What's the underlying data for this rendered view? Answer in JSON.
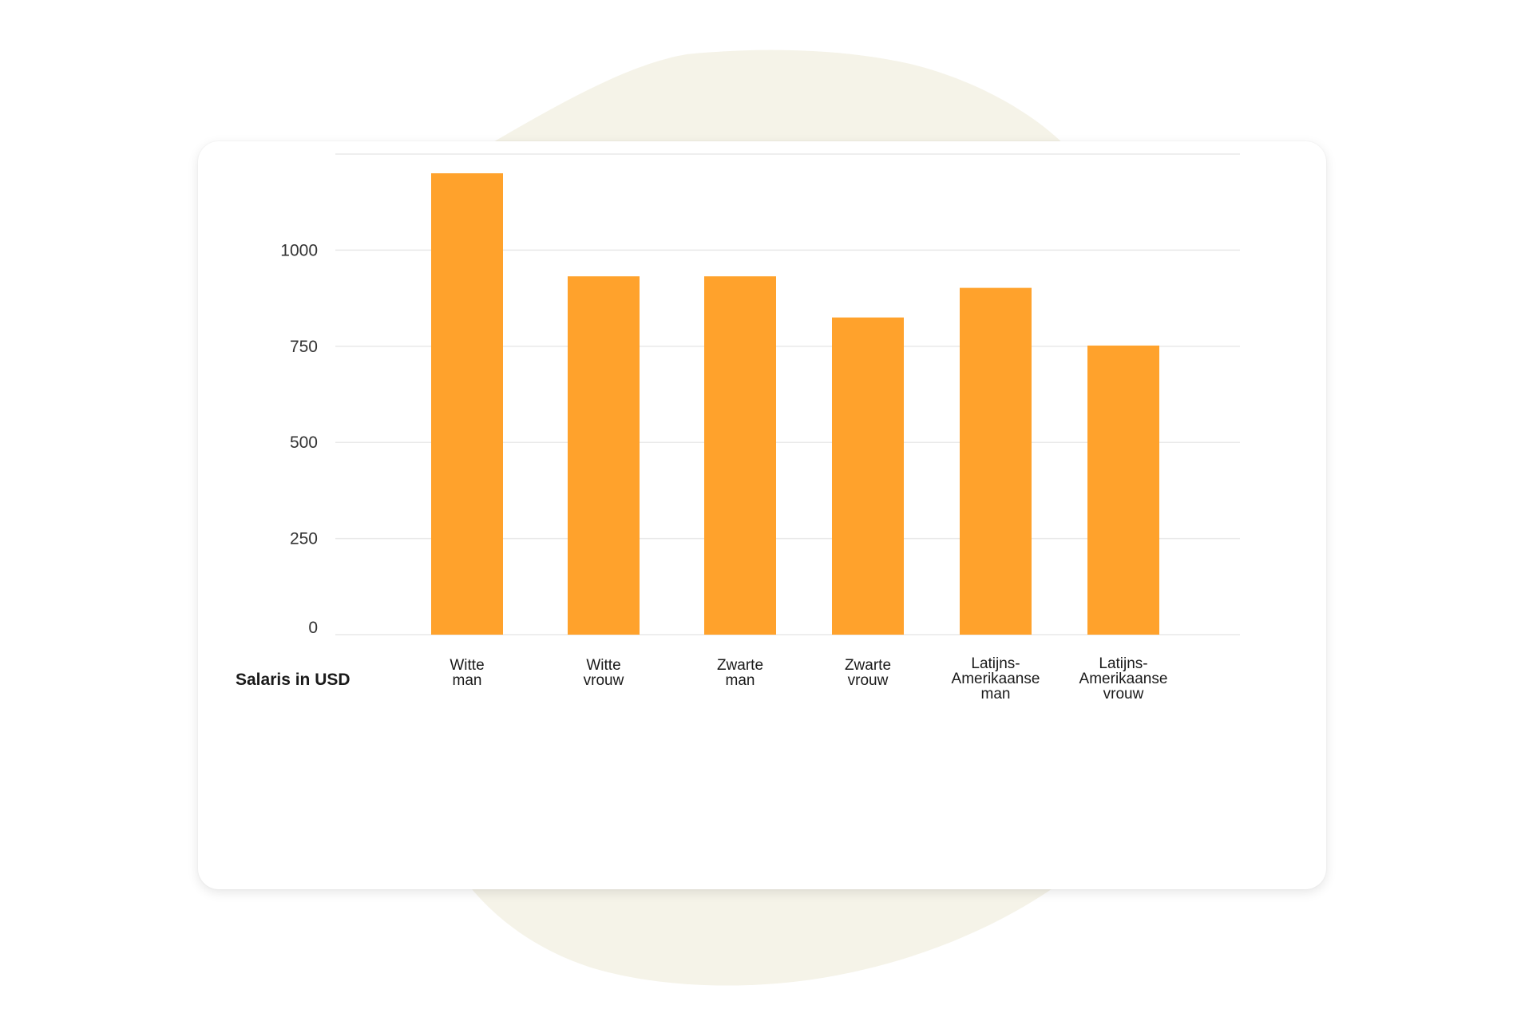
{
  "chart_data": {
    "type": "bar",
    "categories": [
      [
        "Witte",
        "man"
      ],
      [
        "Witte",
        "vrouw"
      ],
      [
        "Zwarte",
        "man"
      ],
      [
        "Zwarte",
        "vrouw"
      ],
      [
        "Latijns-",
        "Amerikaanse",
        "man"
      ],
      [
        "Latijns-",
        "Amerikaanse",
        "vrouw"
      ]
    ],
    "values": [
      1200,
      932,
      932,
      825,
      902,
      752
    ],
    "yticks": [
      "0",
      "250",
      "500",
      "750",
      "1000"
    ],
    "ytick_values": [
      0,
      250,
      500,
      750,
      1000
    ],
    "ylim": [
      0,
      1250
    ],
    "xlabel": "Salaris in USD",
    "ylabel": "",
    "grid": true,
    "colors": {
      "bar": "#FFA22C",
      "grid": "#E9E9E9",
      "blob": "#F5F3E8"
    }
  }
}
